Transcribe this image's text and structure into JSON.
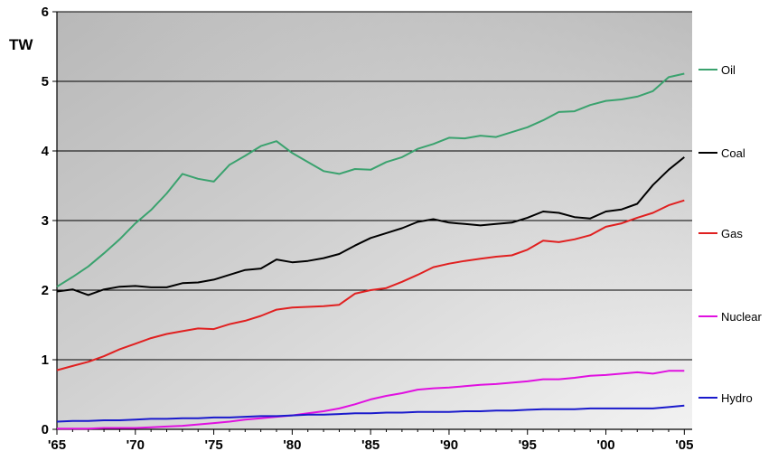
{
  "chart_data": {
    "type": "line",
    "ylabel": "TW",
    "ylim": [
      0,
      6
    ],
    "xlim": [
      1965,
      2005.5
    ],
    "grid": true,
    "legend_position": "right",
    "x_ticks": [
      1965,
      1970,
      1975,
      1980,
      1985,
      1990,
      1995,
      2000,
      2005
    ],
    "x_tick_labels": [
      "'65",
      "'70",
      "'75",
      "'80",
      "'85",
      "'90",
      "'95",
      "'00",
      "'05"
    ],
    "y_ticks": [
      0,
      1,
      2,
      3,
      4,
      5,
      6
    ],
    "y_tick_labels": [
      "0",
      "1",
      "2",
      "3",
      "4",
      "5",
      "6"
    ],
    "x": [
      1965,
      1966,
      1967,
      1968,
      1969,
      1970,
      1971,
      1972,
      1973,
      1974,
      1975,
      1976,
      1977,
      1978,
      1979,
      1980,
      1981,
      1982,
      1983,
      1984,
      1985,
      1986,
      1987,
      1988,
      1989,
      1990,
      1991,
      1992,
      1993,
      1994,
      1995,
      1996,
      1997,
      1998,
      1999,
      2000,
      2001,
      2002,
      2003,
      2004,
      2005
    ],
    "series": [
      {
        "name": "Oil",
        "color": "#3aa26e",
        "values": [
          2.05,
          2.19,
          2.34,
          2.53,
          2.73,
          2.96,
          3.15,
          3.39,
          3.67,
          3.6,
          3.56,
          3.8,
          3.93,
          4.07,
          4.14,
          3.97,
          3.84,
          3.71,
          3.67,
          3.74,
          3.73,
          3.84,
          3.91,
          4.03,
          4.1,
          4.19,
          4.18,
          4.22,
          4.2,
          4.27,
          4.34,
          4.44,
          4.56,
          4.57,
          4.66,
          4.72,
          4.74,
          4.78,
          4.86,
          5.06,
          5.11
        ]
      },
      {
        "name": "Coal",
        "color": "#000000",
        "values": [
          1.98,
          2.01,
          1.93,
          2.01,
          2.05,
          2.06,
          2.04,
          2.04,
          2.1,
          2.11,
          2.15,
          2.22,
          2.29,
          2.31,
          2.44,
          2.4,
          2.42,
          2.46,
          2.52,
          2.64,
          2.75,
          2.82,
          2.89,
          2.98,
          3.02,
          2.97,
          2.95,
          2.93,
          2.95,
          2.97,
          3.04,
          3.13,
          3.11,
          3.05,
          3.03,
          3.13,
          3.16,
          3.24,
          3.51,
          3.73,
          3.91
        ]
      },
      {
        "name": "Gas",
        "color": "#e02020",
        "values": [
          0.85,
          0.91,
          0.97,
          1.05,
          1.15,
          1.23,
          1.31,
          1.37,
          1.41,
          1.45,
          1.44,
          1.51,
          1.56,
          1.63,
          1.72,
          1.75,
          1.76,
          1.77,
          1.79,
          1.95,
          2.0,
          2.03,
          2.12,
          2.22,
          2.33,
          2.38,
          2.42,
          2.45,
          2.48,
          2.5,
          2.58,
          2.71,
          2.69,
          2.73,
          2.79,
          2.91,
          2.96,
          3.04,
          3.11,
          3.22,
          3.29
        ]
      },
      {
        "name": "Nuclear",
        "color": "#e010e0",
        "values": [
          0.01,
          0.01,
          0.01,
          0.02,
          0.02,
          0.02,
          0.03,
          0.04,
          0.05,
          0.07,
          0.09,
          0.11,
          0.14,
          0.16,
          0.18,
          0.2,
          0.23,
          0.26,
          0.3,
          0.36,
          0.43,
          0.48,
          0.52,
          0.57,
          0.59,
          0.6,
          0.62,
          0.64,
          0.65,
          0.67,
          0.69,
          0.72,
          0.72,
          0.74,
          0.77,
          0.78,
          0.8,
          0.82,
          0.8,
          0.84,
          0.84
        ]
      },
      {
        "name": "Hydro",
        "color": "#1a1acc",
        "values": [
          0.11,
          0.12,
          0.12,
          0.13,
          0.13,
          0.14,
          0.15,
          0.15,
          0.16,
          0.16,
          0.17,
          0.17,
          0.18,
          0.19,
          0.19,
          0.2,
          0.21,
          0.21,
          0.22,
          0.23,
          0.23,
          0.24,
          0.24,
          0.25,
          0.25,
          0.25,
          0.26,
          0.26,
          0.27,
          0.27,
          0.28,
          0.29,
          0.29,
          0.29,
          0.3,
          0.3,
          0.3,
          0.3,
          0.3,
          0.32,
          0.34
        ]
      }
    ]
  }
}
